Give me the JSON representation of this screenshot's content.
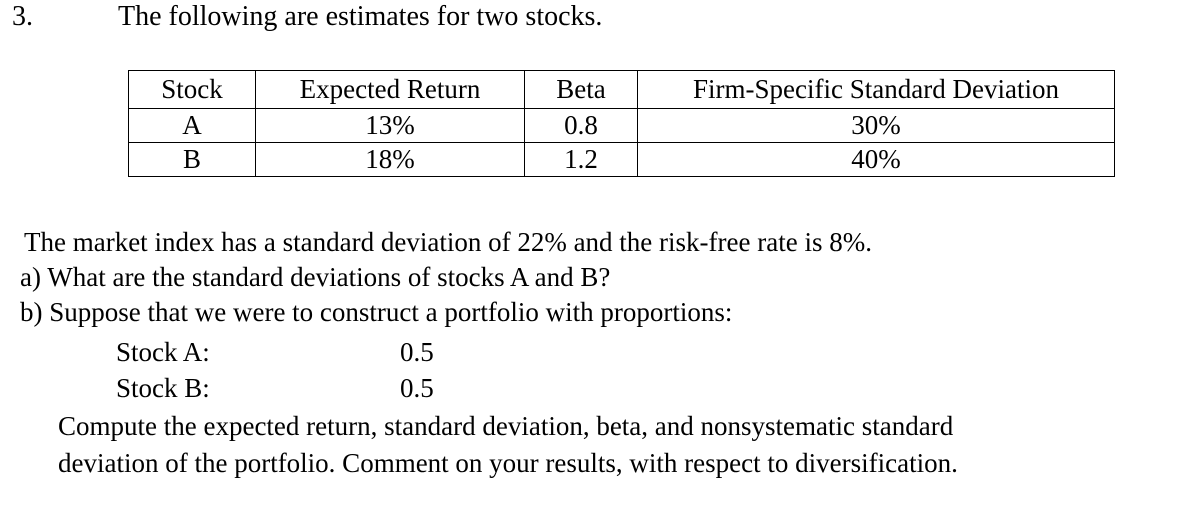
{
  "problem": {
    "number": "3.",
    "intro": "The following are estimates for two stocks."
  },
  "table": {
    "headers": [
      "Stock",
      "Expected Return",
      "Beta",
      "Firm-Specific Standard Deviation"
    ],
    "rows": [
      [
        "A",
        "13%",
        "0.8",
        "30%"
      ],
      [
        "B",
        "18%",
        "1.2",
        "40%"
      ]
    ]
  },
  "body": {
    "market_line": "The market index has a standard deviation of 22% and the risk-free rate is 8%.",
    "part_a": "a) What are the standard deviations of stocks A and B?",
    "part_b": "b) Suppose that we were to construct a portfolio with proportions:",
    "proportions": [
      {
        "label": "Stock A:",
        "value": "0.5"
      },
      {
        "label": "Stock B:",
        "value": "0.5"
      }
    ],
    "compute_line1": "Compute the expected return, standard deviation, beta, and nonsystematic standard",
    "compute_line2": "deviation of the portfolio. Comment on your results, with respect to diversification."
  }
}
